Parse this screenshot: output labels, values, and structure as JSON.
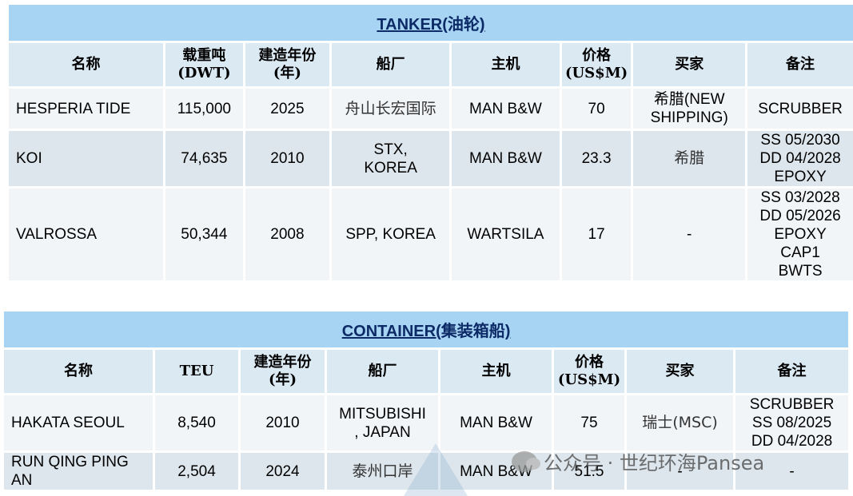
{
  "tanker": {
    "title_en": "TANKER(",
    "title_cn": "油轮",
    "title_close": ")",
    "headers": [
      "名称",
      "载重吨\n(DWT)",
      "建造年份\n(年)",
      "船厂",
      "主机",
      "价格\n(US$M)",
      "买家",
      "备注"
    ],
    "rows": [
      {
        "name": "HESPERIA TIDE",
        "dwt": "115,000",
        "year": "2025",
        "yard": "舟山长宏国际",
        "engine": "MAN B&W",
        "price": "70",
        "buyer": "希腊(NEW\nSHIPPING)",
        "remarks": "SCRUBBER"
      },
      {
        "name": "KOI",
        "dwt": "74,635",
        "year": "2010",
        "yard": "STX,\nKOREA",
        "engine": "MAN B&W",
        "price": "23.3",
        "buyer": "希腊",
        "remarks": "SS 05/2030\nDD 04/2028\nEPOXY"
      },
      {
        "name": "VALROSSA",
        "dwt": "50,344",
        "year": "2008",
        "yard": "SPP, KOREA",
        "engine": "WARTSILA",
        "price": "17",
        "buyer": "-",
        "remarks": "SS 03/2028\nDD 05/2026\nEPOXY\nCAP1\nBWTS"
      }
    ]
  },
  "container": {
    "title_en": "CONTAINER(",
    "title_cn": "集装箱船",
    "title_close": ")",
    "headers": [
      "名称",
      "TEU",
      "建造年份\n(年)",
      "船厂",
      "主机",
      "价格\n(US$M)",
      "买家",
      "备注"
    ],
    "rows": [
      {
        "name": "HAKATA SEOUL",
        "teu": "8,540",
        "year": "2010",
        "yard": "MITSUBISHI\n, JAPAN",
        "engine": "MAN B&W",
        "price": "75",
        "buyer": "瑞士(MSC)",
        "remarks": "SCRUBBER\nSS 08/2025\nDD 04/2028"
      },
      {
        "name": "RUN QING PING\nAN",
        "teu": "2,504",
        "year": "2024",
        "yard": "泰州口岸",
        "engine": "MAN B&W",
        "price": "51.5",
        "buyer": "-",
        "remarks": "-"
      }
    ]
  },
  "watermark": "公众号 · 世纪环海Pansea"
}
